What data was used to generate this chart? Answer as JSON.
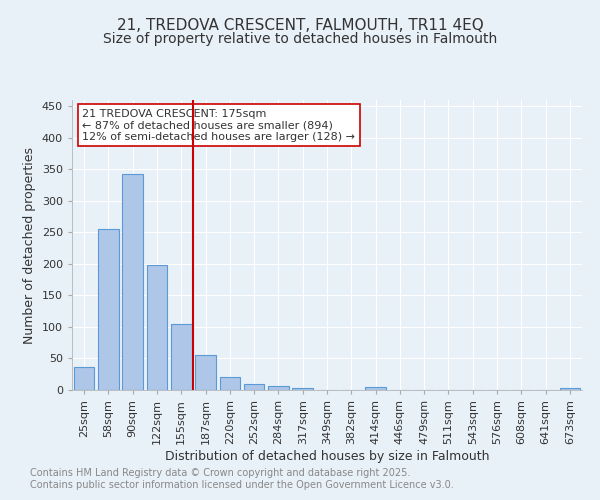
{
  "title": "21, TREDOVA CRESCENT, FALMOUTH, TR11 4EQ",
  "subtitle": "Size of property relative to detached houses in Falmouth",
  "xlabel": "Distribution of detached houses by size in Falmouth",
  "ylabel": "Number of detached properties",
  "categories": [
    "25sqm",
    "58sqm",
    "90sqm",
    "122sqm",
    "155sqm",
    "187sqm",
    "220sqm",
    "252sqm",
    "284sqm",
    "317sqm",
    "349sqm",
    "382sqm",
    "414sqm",
    "446sqm",
    "479sqm",
    "511sqm",
    "543sqm",
    "576sqm",
    "608sqm",
    "641sqm",
    "673sqm"
  ],
  "values": [
    37,
    256,
    342,
    199,
    104,
    55,
    21,
    10,
    7,
    3,
    0,
    0,
    4,
    0,
    0,
    0,
    0,
    0,
    0,
    0,
    3
  ],
  "bar_color": "#aec6e8",
  "bar_edge_color": "#5b9bd5",
  "vline_x_index": 5,
  "vline_color": "#cc0000",
  "annotation_line1": "21 TREDOVA CRESCENT: 175sqm",
  "annotation_line2": "← 87% of detached houses are smaller (894)",
  "annotation_line3": "12% of semi-detached houses are larger (128) →",
  "annotation_box_color": "#ffffff",
  "annotation_box_edge": "#cc0000",
  "ylim": [
    0,
    460
  ],
  "yticks": [
    0,
    50,
    100,
    150,
    200,
    250,
    300,
    350,
    400,
    450
  ],
  "background_color": "#e8f0f8",
  "grid_color": "#ffffff",
  "footer_text": "Contains HM Land Registry data © Crown copyright and database right 2025.\nContains public sector information licensed under the Open Government Licence v3.0.",
  "title_fontsize": 11,
  "subtitle_fontsize": 10,
  "axis_label_fontsize": 9,
  "tick_fontsize": 8,
  "annotation_fontsize": 8,
  "footer_fontsize": 7
}
